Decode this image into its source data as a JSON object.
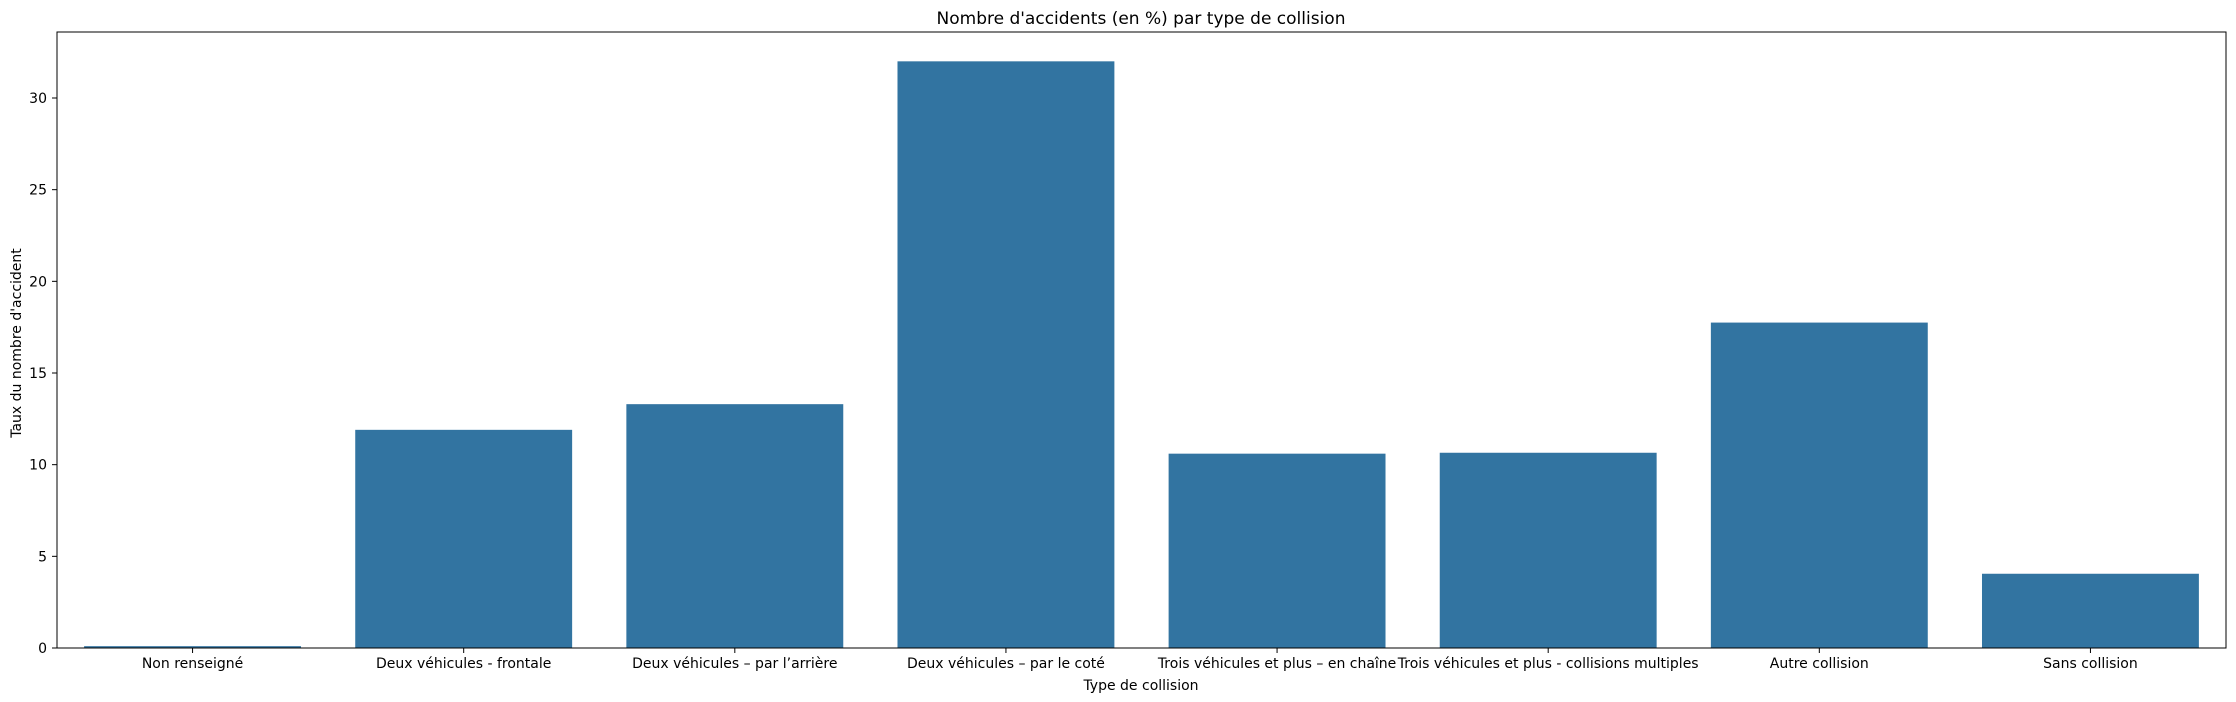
{
  "chart_data": {
    "type": "bar",
    "title": "Nombre d'accidents (en %) par type de collision",
    "xlabel": "Type de collision",
    "ylabel": "Taux du nombre d'accident",
    "categories": [
      "Non renseigné",
      "Deux véhicules - frontale",
      "Deux véhicules – par l’arrière",
      "Deux véhicules – par le coté",
      "Trois véhicules et plus – en chaîne",
      "Trois véhicules et plus - collisions multiples",
      "Autre collision",
      "Sans collision"
    ],
    "values": [
      0.1,
      11.9,
      13.3,
      32.0,
      10.6,
      10.65,
      17.75,
      4.05
    ],
    "ylim": [
      0,
      33.6
    ],
    "yticks": [
      0,
      5,
      10,
      15,
      20,
      25,
      30
    ],
    "grid": false,
    "bar_color": "#3274a1"
  }
}
